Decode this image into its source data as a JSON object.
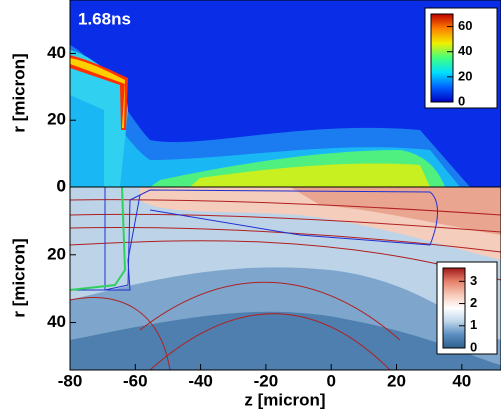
{
  "chart_data": [
    {
      "type": "contour",
      "annotation": "1.68ns",
      "ylabel": "r [micron]",
      "xlim": [
        -80,
        52
      ],
      "ylim": [
        0,
        56
      ],
      "yticks": [
        0,
        20,
        40
      ],
      "colorbar": {
        "clim": [
          0,
          70
        ],
        "ticks": [
          0,
          20,
          40,
          60
        ],
        "colors": [
          "#0000c0",
          "#0060ff",
          "#00e0ff",
          "#40ff80",
          "#f0f000",
          "#ff8000",
          "#c00000"
        ]
      }
    },
    {
      "type": "contour",
      "ylabel": "r [micron]",
      "xlabel": "z [micron]",
      "xlim": [
        -80,
        52
      ],
      "xticks": [
        -80,
        -60,
        -40,
        -20,
        0,
        20,
        40
      ],
      "ylim": [
        0,
        54
      ],
      "yticks": [
        0,
        20,
        40
      ],
      "inverted": true,
      "colorbar": {
        "clim": [
          0,
          3.6
        ],
        "ticks": [
          0,
          1,
          2,
          3
        ],
        "colors": [
          "#2e5f8e",
          "#5b8ec0",
          "#bfd6ea",
          "#ffffff",
          "#f7c9b8",
          "#e6806a",
          "#a01818"
        ]
      }
    }
  ]
}
